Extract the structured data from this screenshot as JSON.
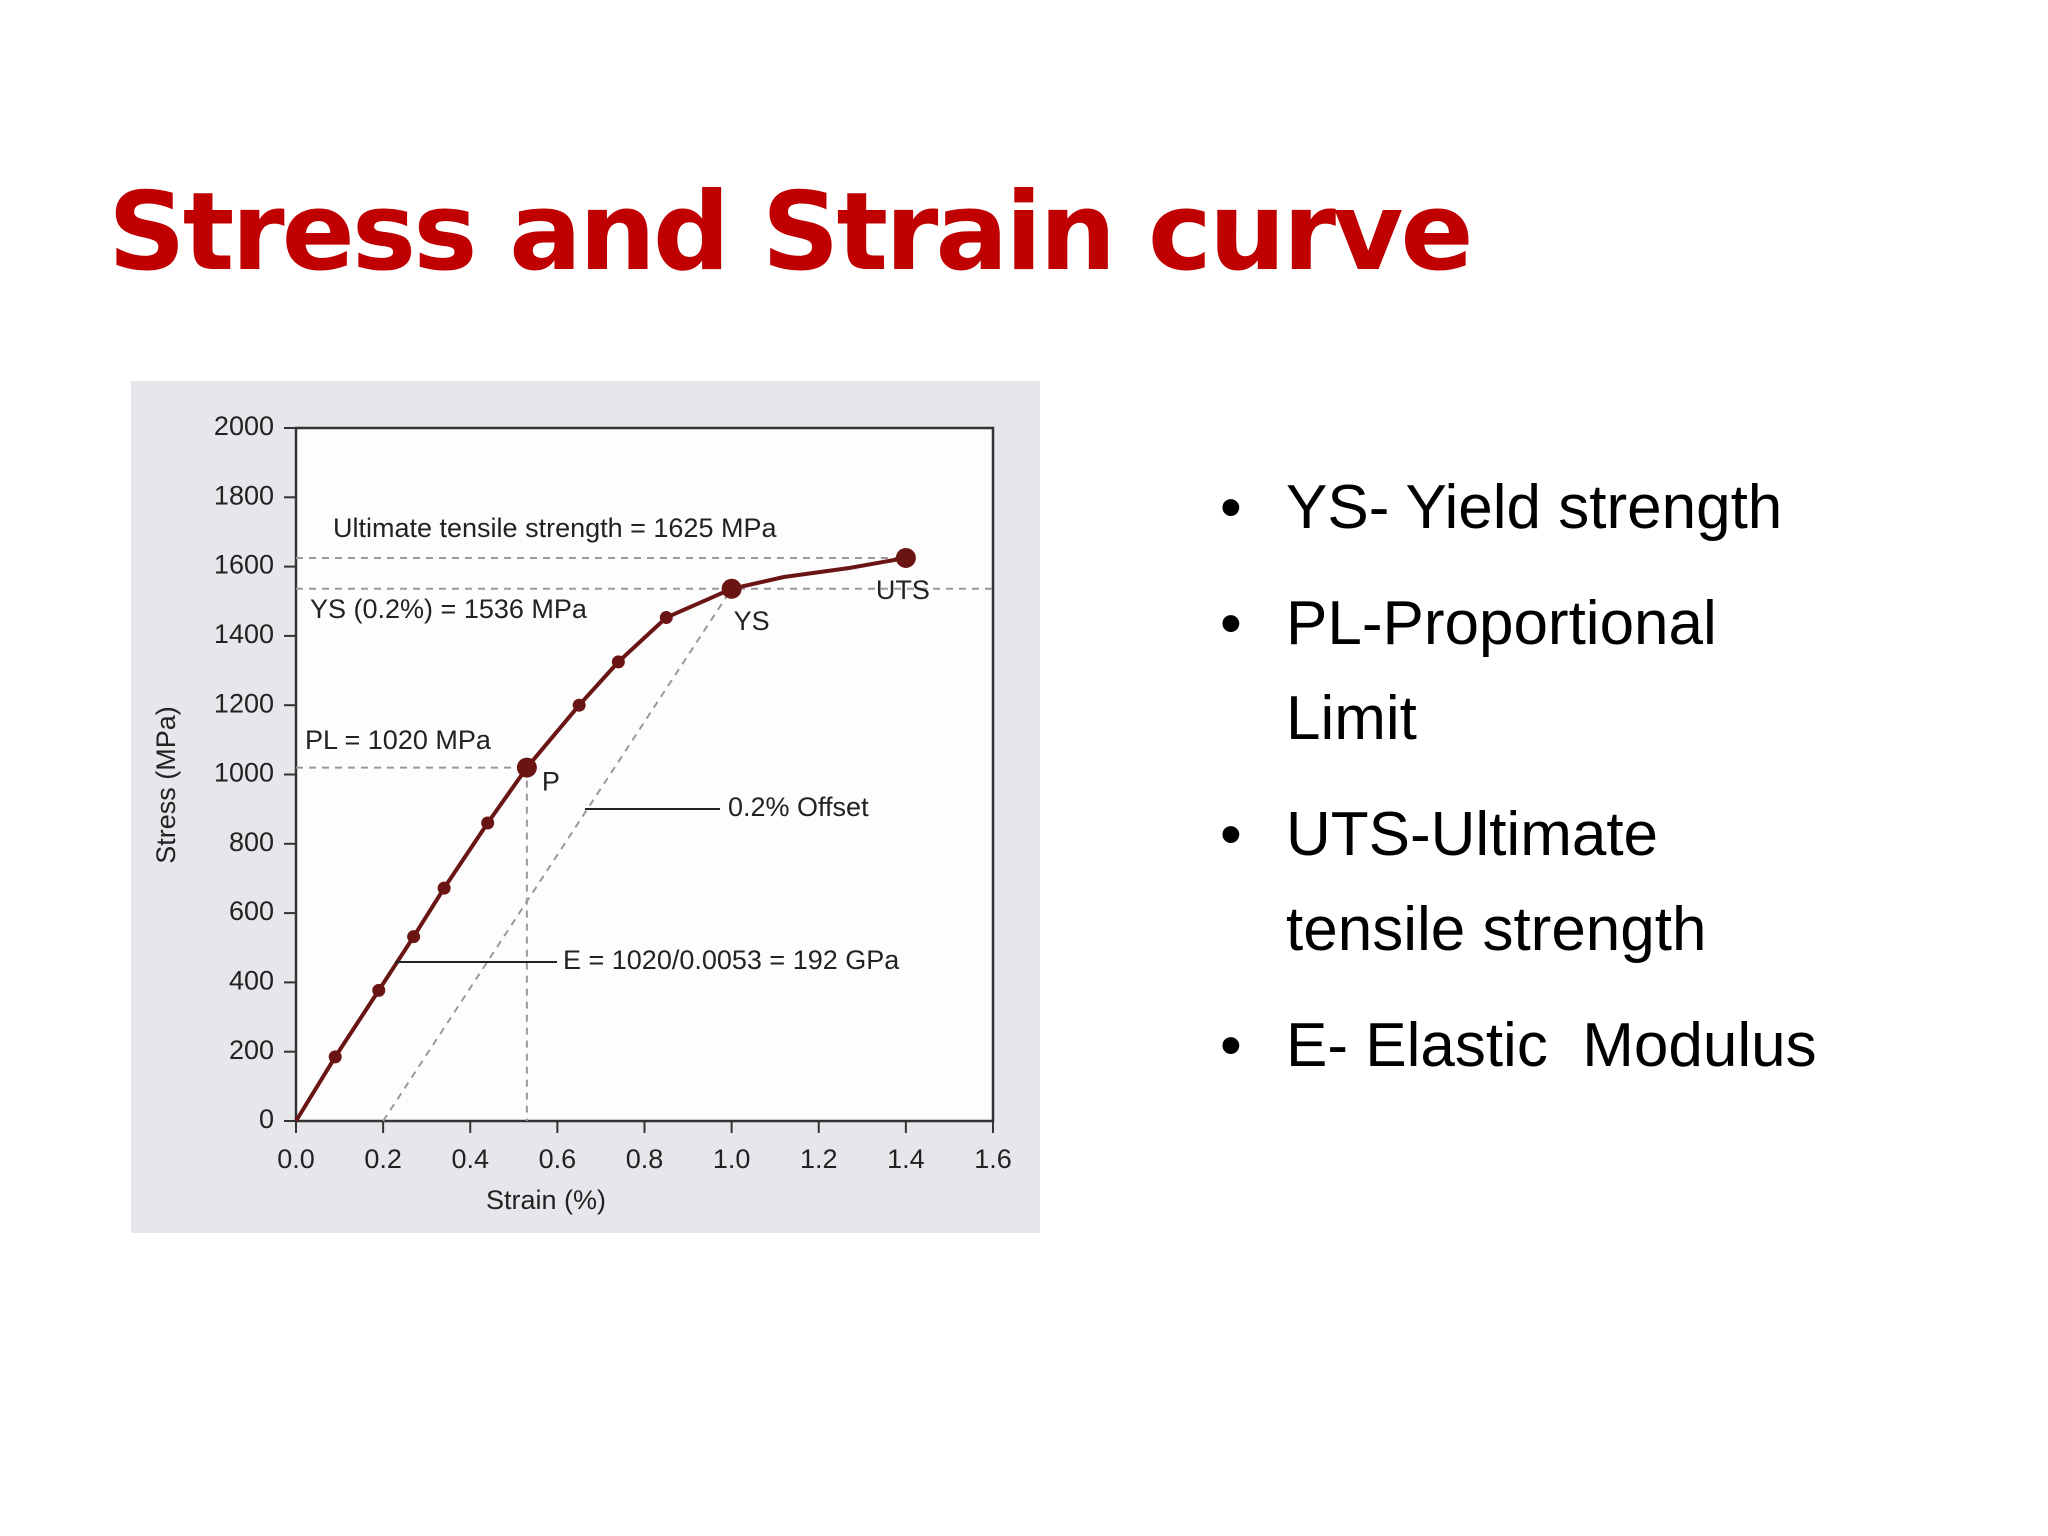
{
  "slide": {
    "title": "Stress and Strain curve",
    "bullets": [
      "YS- Yield strength",
      "PL-Proportional Limit",
      "UTS-Ultimate tensile strength",
      "E- Elastic  Modulus"
    ]
  },
  "chart_data": {
    "type": "line",
    "x_label": "Strain (%)",
    "y_label": "Stress (MPa)",
    "xlim": [
      0,
      1.6
    ],
    "ylim": [
      0,
      2000
    ],
    "xticks": [
      {
        "value": 0,
        "label": "0.0"
      },
      0.2,
      0.4,
      0.6,
      0.8,
      {
        "value": 1,
        "label": "1.0"
      },
      1.2,
      1.4,
      1.6
    ],
    "yticks": [
      0,
      200,
      400,
      600,
      800,
      1000,
      1200,
      1400,
      1600,
      1800,
      2000
    ],
    "color": "#6b1414",
    "series": [
      {
        "x": [
          0,
          0.09,
          0.19,
          0.27,
          0.34,
          0.44,
          0.53,
          0.65,
          0.74,
          0.85,
          1.0,
          1.12,
          1.27,
          1.4
        ],
        "values": [
          0,
          185,
          377,
          532,
          672,
          860,
          1020,
          1200,
          1325,
          1453,
          1536,
          1570,
          1596,
          1625
        ]
      },
      {
        "x": [
          0.09,
          0.19,
          0.27,
          0.34,
          0.44,
          0.65,
          0.74,
          0.85
        ],
        "values": [
          185,
          377,
          532,
          672,
          860,
          1200,
          1325,
          1453
        ]
      }
    ],
    "key_points": [
      {
        "label": "P",
        "x": 0.53,
        "y": 1020
      },
      {
        "label": "YS",
        "x": 1.0,
        "y": 1536
      },
      {
        "label": "UTS",
        "x": 1.4,
        "y": 1625
      }
    ],
    "offset_line": {
      "x": [
        0.2,
        1.0
      ],
      "values": [
        0,
        1536
      ]
    },
    "annotations": [
      "Ultimate tensile strength = 1625 MPa",
      "YS (0.2%) = 1536 MPa",
      "PL = 1020 MPa",
      "0.2% Offset",
      "E = 1020/0.0053 = 192 GPa"
    ]
  }
}
